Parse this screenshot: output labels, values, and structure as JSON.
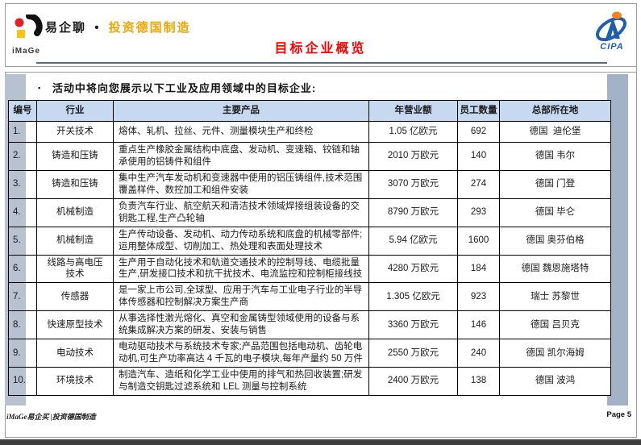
{
  "header": {
    "logo_text": "iMaGe",
    "brand_black": "易企聊",
    "brand_dot": "•",
    "brand_gold": "投资德国制造",
    "page_title": "目标企业概览",
    "cipa_label": "CIPA"
  },
  "intro": {
    "bullet": "▪",
    "text": "活动中将向您展示以下工业及应用领域中的目标企业:"
  },
  "table": {
    "headers": [
      "编号",
      "行业",
      "主要产品",
      "年营业额",
      "员工数量",
      "总部所在地"
    ],
    "rows": [
      {
        "no": "1.",
        "industry": "开关技术",
        "products": "熔体、轧机、拉丝、元件、测量模块生产和终检",
        "revenue": "1.05 亿欧元",
        "employees": "692",
        "hq": "德国  迪伦堡"
      },
      {
        "no": "2.",
        "industry": "铸造和压铸",
        "products": "重点生产橡胶金属结构中底盘、发动机、变速箱、铰链和轴承使用的铝铸件和组件",
        "revenue": "2010 万欧元",
        "employees": "140",
        "hq": "德国 韦尔"
      },
      {
        "no": "3.",
        "industry": "铸造和压铸",
        "products": "集中生产汽车发动机和变速器中使用的铝压铸组件,技术范围覆盖样件、数控加工和组件安装",
        "revenue": "3070 万欧元",
        "employees": "274",
        "hq": "德国 门登"
      },
      {
        "no": "4.",
        "industry": "机械制造",
        "products": "负责汽车行业、航空航天和清洁技术领域焊接组装设备的交钥匙工程,生产凸轮轴",
        "revenue": "8790 万欧元",
        "employees": "293",
        "hq": "德国 毕仑"
      },
      {
        "no": "5.",
        "industry": "机械制造",
        "products": "生产传动设备、发动机、动力传动系统和底盘的机械零部件;运用整体成型、切削加工、热处理和表面处理技术",
        "revenue": "5.94 亿欧元",
        "employees": "1600",
        "hq": "德国 奥芬伯格"
      },
      {
        "no": "6.",
        "industry": "线路与高电压技术",
        "products": "生产用于自动化技术和轨道交通技术的控制导线、电缆批量生产,研发接口技术和抗干扰技术、电流监控和控制柜接线技",
        "revenue": "4280 万欧元",
        "employees": "184",
        "hq": "德国 魏恩施塔特"
      },
      {
        "no": "7.",
        "industry": "传感器",
        "products": "是一家上市公司,全球型、应用于汽车与工业电子行业的半导体传感器和控制解决方案生产商",
        "revenue": "1.305 亿欧元",
        "employees": "923",
        "hq": "瑞士 苏黎世"
      },
      {
        "no": "8.",
        "industry": "快速原型技术",
        "products": "从事选择性激光熔化、真空和金属铸型领域使用的设备与系统集成解决方案的研发、安装与销售",
        "revenue": "3360 万欧元",
        "employees": "146",
        "hq": "德国 吕贝克"
      },
      {
        "no": "9.",
        "industry": "电动技术",
        "products": "电动驱动技术与系统技术专家;产品范围包括电动机、齿轮电动机,可生产功率高达 4 千瓦的电子模块,每年产量约 50 万件",
        "revenue": "2550 万欧元",
        "employees": "240",
        "hq": "德国 凯尔海姆"
      },
      {
        "no": "10.",
        "industry": "环境技术",
        "products": "制造汽车、造纸和化学工业中使用的排气和热回收装置;研发与制造交钥匙过滤系统和 LEL 测量与控制系统",
        "revenue": "2400 万欧元",
        "employees": "138",
        "hq": "德国 波鸿"
      }
    ]
  },
  "footer": {
    "left": "iMaGe易企买 |投资德国制造",
    "page": "Page 5"
  },
  "colors": {
    "brand_gold": "#F0A500",
    "title_red": "#FF0000",
    "table_header_bg": "#C6D9F1",
    "side_bar_left": "#B7C1D0",
    "side_bar_right": "#A4B2C7",
    "header_rule": "#4E7189",
    "cipa_blue": "#1F5FAE",
    "cipa_orange": "#F58220",
    "logo_red": "#E31E24",
    "logo_yellow": "#FFC20E",
    "bottom_strip": "#3D3D3D"
  }
}
